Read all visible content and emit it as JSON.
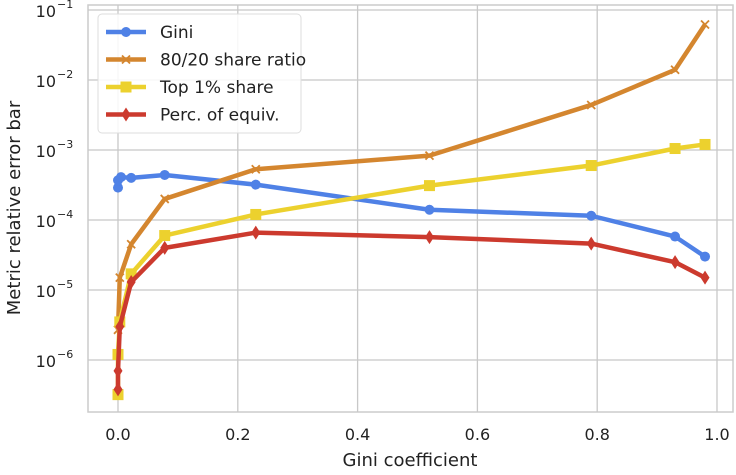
{
  "chart_data": {
    "type": "line",
    "title": "",
    "xlabel": "Gini coefficient",
    "ylabel": "Metric relative error bar",
    "xlim": [
      -0.05,
      1.03
    ],
    "ylim_log10": [
      -6.7,
      -0.95
    ],
    "yscale": "log",
    "grid": true,
    "legend_placement": "top-left",
    "xticks": [
      0.0,
      0.2,
      0.4,
      0.6,
      0.8,
      1.0
    ],
    "xtick_labels": [
      "0.0",
      "0.2",
      "0.4",
      "0.6",
      "0.8",
      "1.0"
    ],
    "yticks_exp": [
      -1,
      -2,
      -3,
      -4,
      -5,
      -6
    ],
    "ytick_base": "10",
    "ytick_exps": [
      "−1",
      "−2",
      "−3",
      "−4",
      "−5",
      "−6"
    ],
    "series": [
      {
        "name": "Gini",
        "color": "#4f81e6",
        "marker": "circle",
        "x": [
          0.0,
          0.0,
          0.005,
          0.022,
          0.078,
          0.23,
          0.52,
          0.79,
          0.93,
          0.98
        ],
        "y": [
          0.00029,
          0.00037,
          0.00041,
          0.0004,
          0.00044,
          0.00032,
          0.00014,
          0.000115,
          5.8e-05,
          3e-05
        ]
      },
      {
        "name": "80/20 share ratio",
        "color": "#d4862f",
        "marker": "x",
        "x": [
          0.0,
          0.003,
          0.022,
          0.078,
          0.23,
          0.52,
          0.79,
          0.93,
          0.98
        ],
        "y": [
          2.7e-06,
          1.5e-05,
          4.5e-05,
          0.0002,
          0.00053,
          0.00083,
          0.0044,
          0.014,
          0.062
        ]
      },
      {
        "name": "Top 1% share",
        "color": "#ecd12e",
        "marker": "square",
        "x": [
          0.0,
          0.0,
          0.003,
          0.022,
          0.078,
          0.23,
          0.52,
          0.79,
          0.93,
          0.98
        ],
        "y": [
          3.2e-07,
          1.2e-06,
          3.5e-06,
          1.7e-05,
          6e-05,
          0.00012,
          0.00031,
          0.0006,
          0.00105,
          0.0012
        ]
      },
      {
        "name": "Perc. of equiv.",
        "color": "#cc3a2e",
        "marker": "diamond",
        "x": [
          0.0,
          0.0,
          0.003,
          0.022,
          0.078,
          0.23,
          0.52,
          0.79,
          0.93,
          0.98
        ],
        "y": [
          3.8e-07,
          7e-07,
          3e-06,
          1.3e-05,
          4e-05,
          6.6e-05,
          5.7e-05,
          4.6e-05,
          2.5e-05,
          1.5e-05
        ]
      }
    ]
  }
}
